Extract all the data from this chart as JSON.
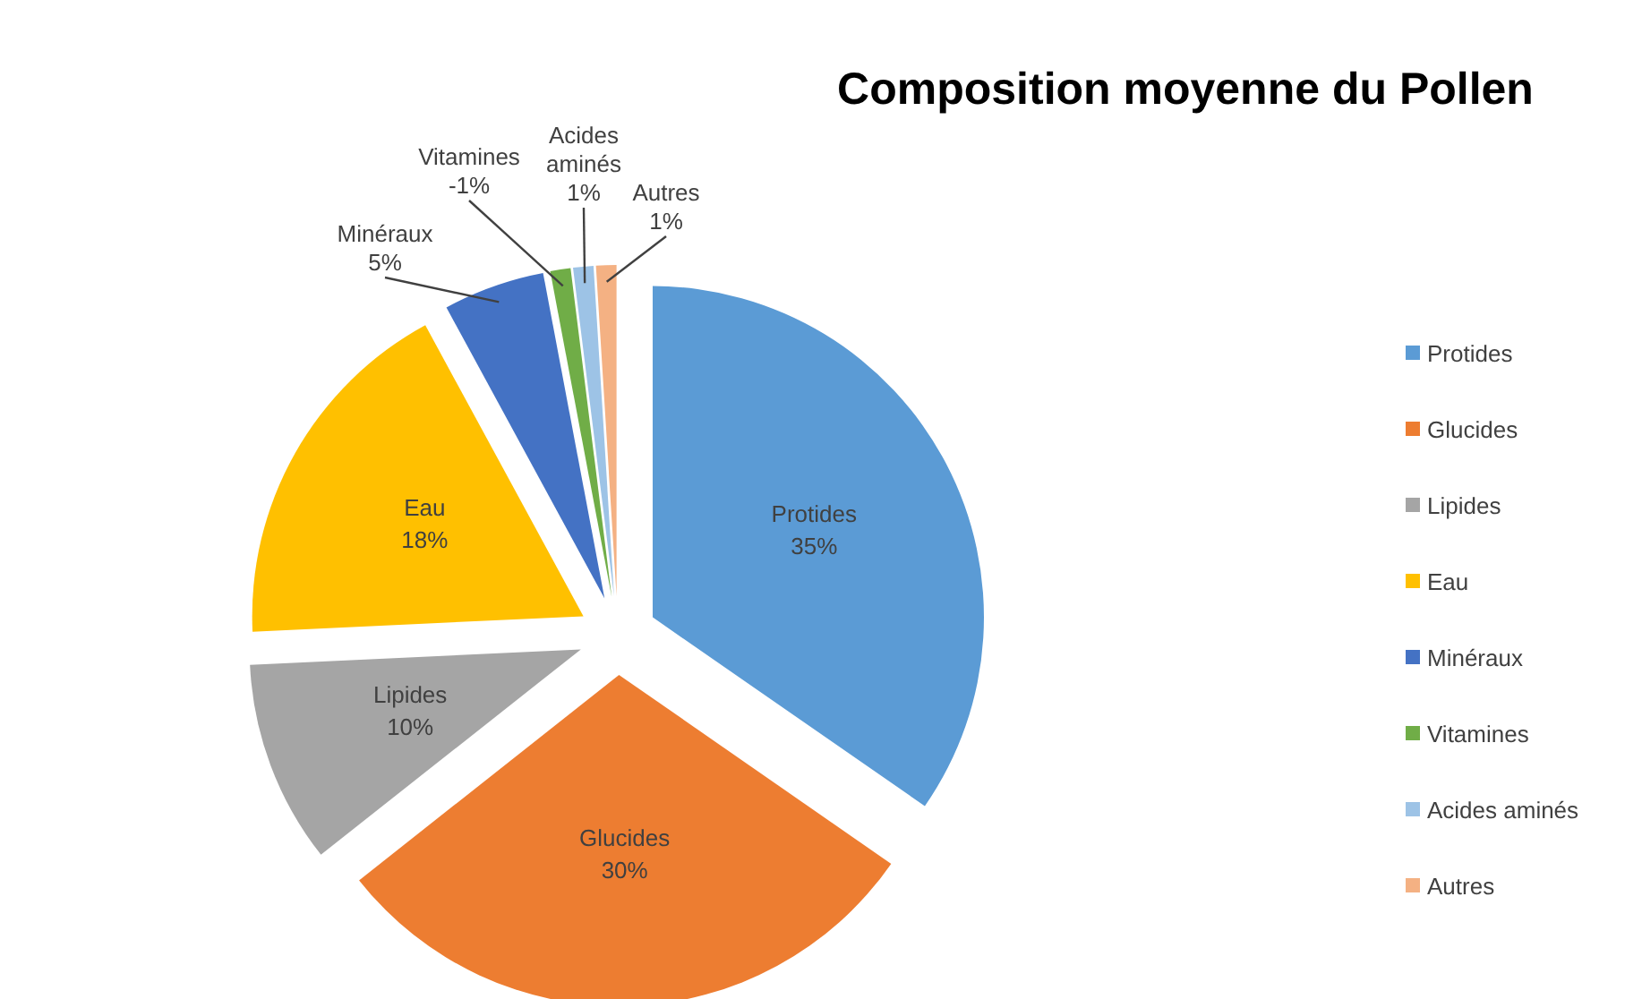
{
  "chart_data": {
    "type": "pie",
    "title": "Composition moyenne du Pollen",
    "categories": [
      "Protides",
      "Glucides",
      "Lipides",
      "Eau",
      "Minéraux",
      "Vitamines",
      "Acides aminés",
      "Autres"
    ],
    "values": [
      35,
      30,
      10,
      18,
      5,
      1,
      1,
      1
    ],
    "value_labels": [
      "35%",
      "30%",
      "10%",
      "18%",
      "5%",
      null,
      "1%",
      "1%"
    ],
    "annotations": [
      {
        "text": "-1%",
        "x": "Vitamines"
      }
    ],
    "colors": [
      "#5b9bd5",
      "#ed7d31",
      "#a5a5a5",
      "#ffc000",
      "#4472c4",
      "#70ad47",
      "#9dc3e6",
      "#f4b183"
    ],
    "legend": "right"
  }
}
